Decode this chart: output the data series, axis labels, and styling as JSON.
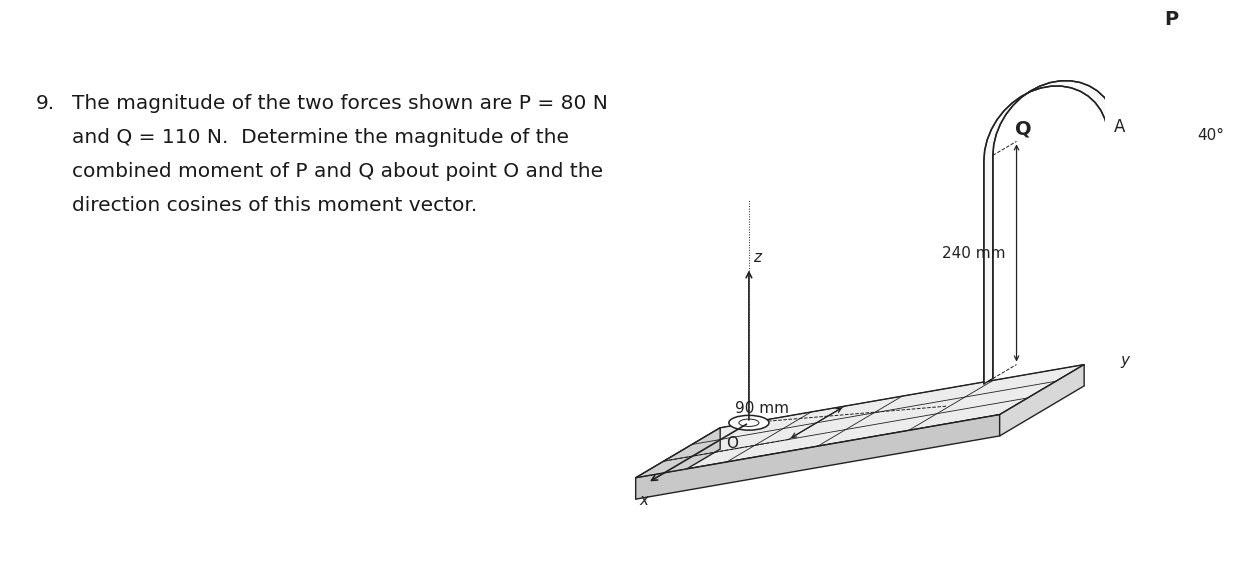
{
  "problem_number": "9.",
  "text_line1": "The magnitude of the two forces shown are P = 80 N",
  "text_line2": "and Q = 110 N.  Determine the magnitude of the",
  "text_line3": "combined moment of P and Q about point O and the",
  "text_line4": "direction cosines of this moment vector.",
  "bg_color": "#ffffff",
  "text_color": "#1a1a1a",
  "fig_width": 12.0,
  "fig_height": 5.64,
  "label_240mm": "240 mm",
  "label_90mm": "90 mm",
  "label_40deg": "40°",
  "label_P": "P",
  "label_Q": "Q",
  "label_A": "A",
  "label_O": "O",
  "label_x": "x",
  "label_y": "y",
  "label_z": "z",
  "text_fontsize": 14.5,
  "diagram_line_color": "#222222"
}
